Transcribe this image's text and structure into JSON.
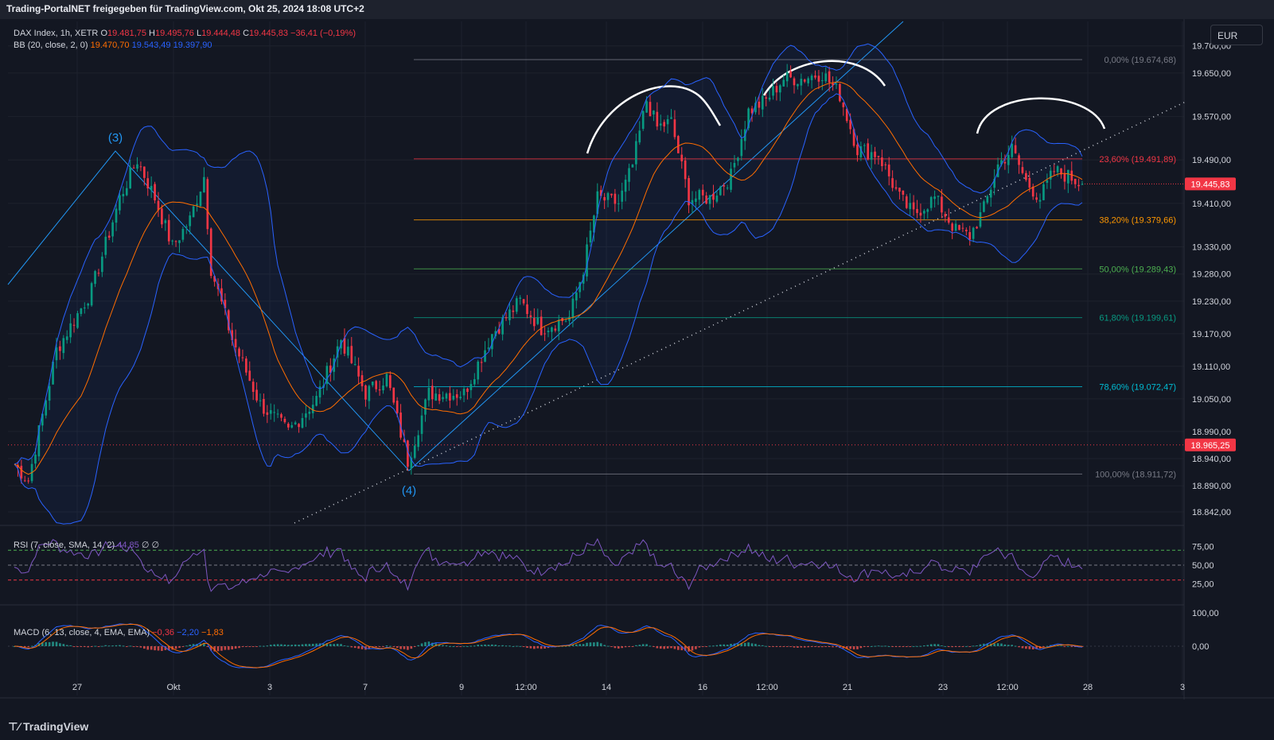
{
  "header": {
    "text": "Trading-PortalNET freigegeben für TradingView.com, Okt 25, 2024 18:08 UTC+2"
  },
  "legend": {
    "symbol": "DAX Index, 1h, XETR",
    "o_label": "O",
    "o": "19.481,75",
    "h_label": "H",
    "h": "19.495,76",
    "l_label": "L",
    "l": "19.444,48",
    "c_label": "C",
    "c": "19.445,83",
    "change": "−36,41 (−0,19%)",
    "bb_label": "BB (20, close, 2, 0)",
    "bb_basis": "19.470,70",
    "bb_upper": "19.543,49",
    "bb_lower": "19.397,90",
    "rsi_label": "RSI (7, close, SMA, 14, 2)",
    "rsi_value": "44,85",
    "rsi_na1": "∅",
    "rsi_na2": "∅",
    "macd_label": "MACD (6, 13, close, 4, EMA, EMA)",
    "macd_hist": "−0,36",
    "macd_line": "−2,20",
    "macd_signal": "−1,83"
  },
  "currency_button": "EUR",
  "footer": {
    "logo": "TradingView"
  },
  "colors": {
    "background": "#131722",
    "up": "#089981",
    "down": "#f23645",
    "bb_band": "#2962ff",
    "bb_basis": "#ff6d00",
    "rsi": "#7e57c2",
    "macd": "#2962ff",
    "signal": "#ff6d00"
  },
  "chart_data": [
    {
      "type": "candlestick",
      "title": "DAX Index, 1h, XETR",
      "currency": "EUR",
      "x_tick_labels": [
        "27",
        "Okt",
        "3",
        "7",
        "9",
        "12:00",
        "14",
        "16",
        "12:00",
        "21",
        "23",
        "12:00",
        "28",
        "3"
      ],
      "y_tick_labels": [
        "19.700,00",
        "19.650,00",
        "19.570,00",
        "19.490,00",
        "19.410,00",
        "19.330,00",
        "19.280,00",
        "19.230,00",
        "19.170,00",
        "19.110,00",
        "19.050,00",
        "18.990,00",
        "18.940,00",
        "18.890,00",
        "18.842,00"
      ],
      "ylim": [
        18820,
        19745
      ],
      "last_price_label": "19.445,83",
      "marked_price_label": "18.965,25",
      "marked_price": 18965.25,
      "series_close_path": [
        {
          "x": 0,
          "y": 18930
        },
        {
          "x": 4,
          "y": 18900
        },
        {
          "x": 12,
          "y": 19140
        },
        {
          "x": 22,
          "y": 19250
        },
        {
          "x": 30,
          "y": 19420
        },
        {
          "x": 35,
          "y": 19490
        },
        {
          "x": 40,
          "y": 19420
        },
        {
          "x": 45,
          "y": 19330
        },
        {
          "x": 50,
          "y": 19380
        },
        {
          "x": 54,
          "y": 19460
        },
        {
          "x": 56,
          "y": 19290
        },
        {
          "x": 62,
          "y": 19160
        },
        {
          "x": 70,
          "y": 19040
        },
        {
          "x": 78,
          "y": 18990
        },
        {
          "x": 86,
          "y": 19050
        },
        {
          "x": 93,
          "y": 19160
        },
        {
          "x": 100,
          "y": 19060
        },
        {
          "x": 106,
          "y": 19090
        },
        {
          "x": 112,
          "y": 18935
        },
        {
          "x": 118,
          "y": 19060
        },
        {
          "x": 128,
          "y": 19060
        },
        {
          "x": 136,
          "y": 19170
        },
        {
          "x": 144,
          "y": 19230
        },
        {
          "x": 150,
          "y": 19180
        },
        {
          "x": 158,
          "y": 19200
        },
        {
          "x": 162,
          "y": 19290
        },
        {
          "x": 166,
          "y": 19420
        },
        {
          "x": 172,
          "y": 19410
        },
        {
          "x": 176,
          "y": 19480
        },
        {
          "x": 180,
          "y": 19600
        },
        {
          "x": 183,
          "y": 19550
        },
        {
          "x": 187,
          "y": 19560
        },
        {
          "x": 192,
          "y": 19420
        },
        {
          "x": 198,
          "y": 19420
        },
        {
          "x": 204,
          "y": 19460
        },
        {
          "x": 209,
          "y": 19580
        },
        {
          "x": 214,
          "y": 19600
        },
        {
          "x": 219,
          "y": 19640
        },
        {
          "x": 224,
          "y": 19640
        },
        {
          "x": 230,
          "y": 19650
        },
        {
          "x": 235,
          "y": 19610
        },
        {
          "x": 240,
          "y": 19510
        },
        {
          "x": 246,
          "y": 19500
        },
        {
          "x": 252,
          "y": 19420
        },
        {
          "x": 256,
          "y": 19390
        },
        {
          "x": 262,
          "y": 19420
        },
        {
          "x": 268,
          "y": 19360
        },
        {
          "x": 272,
          "y": 19350
        },
        {
          "x": 276,
          "y": 19400
        },
        {
          "x": 280,
          "y": 19480
        },
        {
          "x": 284,
          "y": 19510
        },
        {
          "x": 288,
          "y": 19450
        },
        {
          "x": 292,
          "y": 19420
        },
        {
          "x": 296,
          "y": 19470
        },
        {
          "x": 300,
          "y": 19460
        },
        {
          "x": 304,
          "y": 19445.83
        }
      ],
      "bollinger": {
        "period": 20,
        "source": "close",
        "mult": 2,
        "basis": 19470.7,
        "upper": 19543.49,
        "lower": 19397.9
      },
      "fibonacci": [
        {
          "label": "0,00% (19.674,68)",
          "level": 19674.68
        },
        {
          "label": "23,60% (19.491,89)",
          "level": 19491.89
        },
        {
          "label": "38,20% (19.379,66)",
          "level": 19379.66
        },
        {
          "label": "50,00% (19.289,43)",
          "level": 19289.43
        },
        {
          "label": "61,80% (19.199,61)",
          "level": 19199.61
        },
        {
          "label": "78,60% (19.072,47)",
          "level": 19072.47
        },
        {
          "label": "100,00% (18.911,72)",
          "level": 18911.72
        }
      ],
      "annotations": [
        "(3)",
        "(4)"
      ]
    },
    {
      "type": "line",
      "title": "RSI (7, close, SMA, 14, 2)",
      "y_tick_labels": [
        "75,00",
        "50,00",
        "25,00"
      ],
      "ylim": [
        0,
        100
      ],
      "last_value": 44.85
    },
    {
      "type": "bar",
      "title": "MACD (6, 13, close, 4, EMA, EMA)",
      "y_tick_labels": [
        "100,00",
        "0,00"
      ],
      "histogram": -0.36,
      "macd": -2.2,
      "signal": -1.83
    }
  ]
}
